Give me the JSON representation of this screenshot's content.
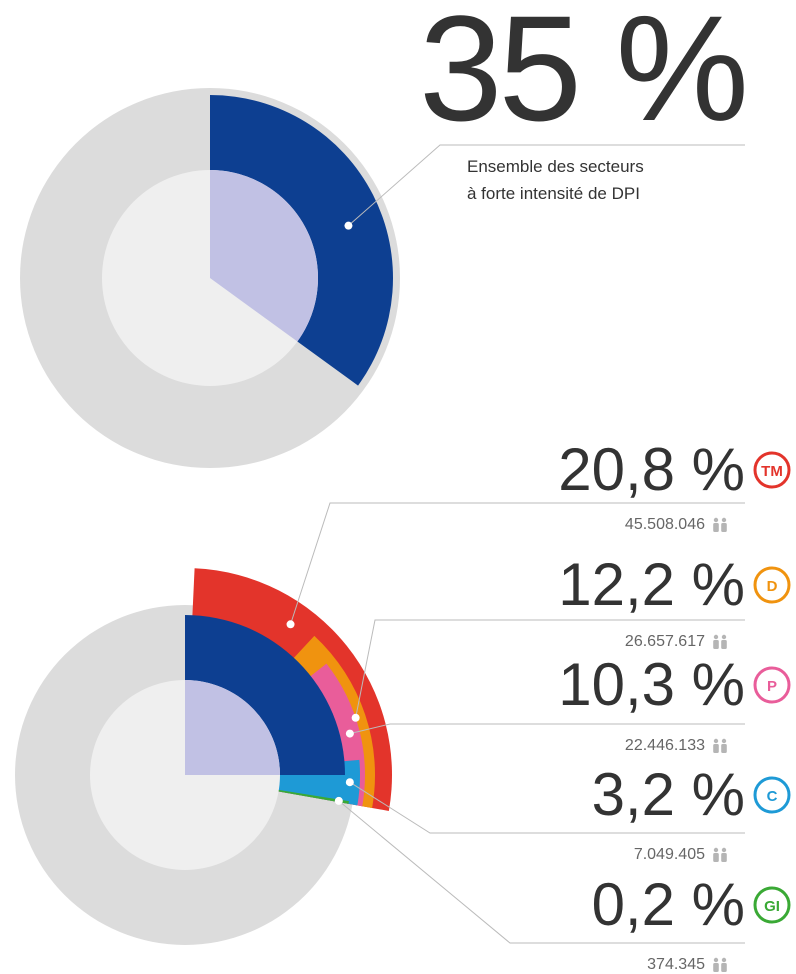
{
  "chart_data": [
    {
      "type": "pie",
      "values": [
        35
      ],
      "value_labels": [
        "35 %"
      ],
      "color": "#0d3f91",
      "label_lines": [
        "Ensemble des secteurs",
        "à forte intensité de DPI"
      ]
    },
    {
      "type": "pie",
      "categories": [
        "TM",
        "D",
        "P",
        "C",
        "GI"
      ],
      "values": [
        20.8,
        12.2,
        10.3,
        3.2,
        0.2
      ],
      "value_labels": [
        "20,8 %",
        "12,2 %",
        "10,3 %",
        "3,2 %",
        "0,2 %"
      ],
      "populations": [
        "45.508.046",
        "26.657.617",
        "22.446.133",
        "7.049.405",
        "374.345"
      ],
      "colors": [
        "#e3342b",
        "#f0930f",
        "#e95d9a",
        "#1e9ad6",
        "#3aa935"
      ]
    }
  ]
}
